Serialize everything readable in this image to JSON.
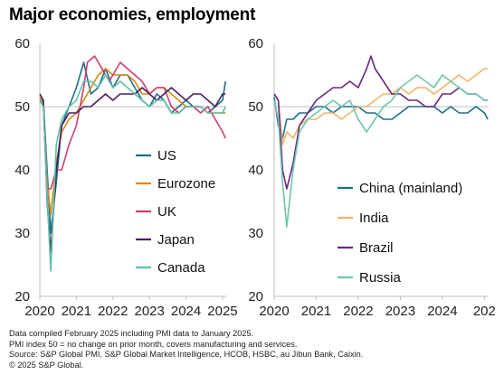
{
  "title": {
    "part1": "Major economies,",
    "part2": "employment"
  },
  "colors": {
    "US": "#1f6e8c",
    "Eurozone": "#d88a14",
    "UK": "#cc3e6e",
    "Japan": "#4b1f61",
    "Canada": "#5fc0a8",
    "China (mainland)": "#1f6e8c",
    "India": "#f2b46a",
    "Brazil": "#6b2a80",
    "Russia": "#6fc6b0",
    "gridline": "#d9d9d9",
    "refline": "#bfbfbf"
  },
  "footnotes": [
    "Data compiled February 2025 including PMI data to January 2025.",
    "PMI index 50 = no change on prior month, covers manufacturing and services.",
    "Source: S&P Global PMI, S&P Global Market Intelligence, HCOB, HSBC, au Jibun Bank, Caixin.",
    "© 2025 S&P Global."
  ],
  "chart_data": [
    {
      "type": "line",
      "title": "",
      "xlabel": "",
      "ylabel": "",
      "xlim": [
        2020.0,
        2025.1
      ],
      "ylim": [
        20,
        60
      ],
      "yticks": [
        "20",
        "30",
        "40",
        "50",
        "60"
      ],
      "xticks": [
        "2020",
        "2021",
        "2022",
        "2023",
        "2024",
        "2025"
      ],
      "reference_line": 50,
      "legend_placement": "center-right",
      "series": [
        {
          "name": "US",
          "x": [
            2020.0,
            2020.1,
            2020.2,
            2020.3,
            2020.45,
            2020.6,
            2020.8,
            2021.0,
            2021.2,
            2021.4,
            2021.6,
            2021.8,
            2022.0,
            2022.2,
            2022.4,
            2022.6,
            2022.8,
            2023.0,
            2023.2,
            2023.4,
            2023.6,
            2023.8,
            2024.0,
            2024.2,
            2024.4,
            2024.6,
            2024.8,
            2025.0,
            2025.08
          ],
          "y": [
            51.5,
            50.5,
            40,
            30,
            38,
            47,
            50,
            53,
            57,
            52,
            53,
            56,
            53,
            55,
            55,
            53,
            51,
            50,
            52,
            51,
            49,
            50,
            51,
            50,
            50,
            49,
            50,
            51,
            54
          ]
        },
        {
          "name": "Eurozone",
          "x": [
            2020.0,
            2020.1,
            2020.2,
            2020.3,
            2020.45,
            2020.6,
            2020.8,
            2021.0,
            2021.2,
            2021.4,
            2021.6,
            2021.8,
            2022.0,
            2022.2,
            2022.4,
            2022.6,
            2022.8,
            2023.0,
            2023.2,
            2023.4,
            2023.6,
            2023.8,
            2024.0,
            2024.2,
            2024.4,
            2024.6,
            2024.8,
            2025.0,
            2025.08
          ],
          "y": [
            51.5,
            50,
            38,
            33,
            41,
            46,
            48,
            49,
            51,
            53,
            55,
            56,
            55,
            55,
            55,
            54,
            52,
            52,
            53,
            53,
            52,
            51,
            50,
            50,
            50,
            49,
            49,
            49,
            49
          ]
        },
        {
          "name": "UK",
          "x": [
            2020.0,
            2020.1,
            2020.2,
            2020.3,
            2020.45,
            2020.6,
            2020.8,
            2021.0,
            2021.2,
            2021.3,
            2021.5,
            2021.7,
            2021.9,
            2022.0,
            2022.2,
            2022.4,
            2022.6,
            2022.8,
            2023.0,
            2023.2,
            2023.4,
            2023.6,
            2023.8,
            2024.0,
            2024.2,
            2024.4,
            2024.6,
            2024.8,
            2025.0,
            2025.08
          ],
          "y": [
            51,
            50,
            37,
            37,
            40,
            40,
            44,
            47,
            53,
            57,
            58,
            56,
            54,
            55,
            57,
            56,
            55,
            54,
            52,
            53,
            53,
            50,
            49,
            50,
            50,
            49,
            50,
            48,
            46,
            45
          ]
        },
        {
          "name": "Japan",
          "x": [
            2020.0,
            2020.1,
            2020.2,
            2020.3,
            2020.45,
            2020.6,
            2020.8,
            2021.0,
            2021.2,
            2021.4,
            2021.6,
            2021.8,
            2022.0,
            2022.2,
            2022.4,
            2022.6,
            2022.8,
            2023.0,
            2023.2,
            2023.4,
            2023.6,
            2023.8,
            2024.0,
            2024.2,
            2024.4,
            2024.6,
            2024.8,
            2025.0,
            2025.08
          ],
          "y": [
            52,
            51,
            35,
            27,
            40,
            47,
            49,
            49,
            50,
            50,
            51,
            52,
            51,
            52,
            52,
            52,
            53,
            52,
            51,
            52,
            53,
            52,
            51,
            52,
            52,
            51,
            50,
            52,
            52
          ]
        },
        {
          "name": "Canada",
          "x": [
            2020.0,
            2020.1,
            2020.2,
            2020.3,
            2020.45,
            2020.6,
            2020.8,
            2021.0,
            2021.2,
            2021.4,
            2021.6,
            2021.8,
            2022.0,
            2022.2,
            2022.4,
            2022.6,
            2022.8,
            2023.0,
            2023.2,
            2023.4,
            2023.6,
            2023.8,
            2024.0,
            2024.2,
            2024.4,
            2024.6,
            2024.8,
            2025.0,
            2025.08
          ],
          "y": [
            51,
            50,
            36,
            24,
            44,
            48,
            50,
            51,
            54,
            54,
            53,
            55,
            53,
            54,
            53,
            52,
            51,
            50,
            51,
            51,
            49,
            49,
            50,
            50,
            50,
            49,
            49,
            49,
            50
          ]
        }
      ]
    },
    {
      "type": "line",
      "title": "",
      "xlabel": "",
      "ylabel": "",
      "xlim": [
        2020.0,
        2025.1
      ],
      "ylim": [
        20,
        60
      ],
      "yticks": [
        "20",
        "30",
        "40",
        "50",
        "60"
      ],
      "xticks": [
        "2020",
        "2021",
        "2022",
        "2023",
        "2024",
        "202"
      ],
      "reference_line": 50,
      "legend_placement": "center-right",
      "series": [
        {
          "name": "China (mainland)",
          "x": [
            2020.0,
            2020.1,
            2020.2,
            2020.3,
            2020.45,
            2020.6,
            2020.8,
            2021.0,
            2021.2,
            2021.4,
            2021.6,
            2021.8,
            2022.0,
            2022.2,
            2022.4,
            2022.6,
            2022.8,
            2023.0,
            2023.2,
            2023.4,
            2023.6,
            2023.8,
            2024.0,
            2024.2,
            2024.4,
            2024.6,
            2024.8,
            2025.0,
            2025.08
          ],
          "y": [
            51.5,
            47,
            45,
            48,
            48,
            49,
            49,
            50,
            50,
            49,
            50,
            50,
            50,
            49,
            49,
            48,
            48,
            49,
            50,
            50,
            50,
            50,
            49,
            50,
            49,
            49,
            50,
            49,
            48
          ]
        },
        {
          "name": "India",
          "x": [
            2020.0,
            2020.1,
            2020.2,
            2020.3,
            2020.45,
            2020.6,
            2020.8,
            2021.0,
            2021.2,
            2021.4,
            2021.6,
            2021.8,
            2022.0,
            2022.2,
            2022.4,
            2022.6,
            2022.8,
            2023.0,
            2023.2,
            2023.4,
            2023.6,
            2023.8,
            2024.0,
            2024.2,
            2024.4,
            2024.6,
            2024.8,
            2025.0,
            2025.08
          ],
          "y": [
            52,
            51,
            44,
            46,
            45,
            47,
            48,
            48,
            49,
            49,
            48,
            49,
            50,
            50,
            51,
            52,
            52,
            53,
            52,
            53,
            53,
            52,
            53,
            54,
            55,
            54,
            55,
            56,
            56
          ]
        },
        {
          "name": "Brazil",
          "x": [
            2020.0,
            2020.1,
            2020.2,
            2020.3,
            2020.45,
            2020.6,
            2020.8,
            2021.0,
            2021.2,
            2021.4,
            2021.6,
            2021.8,
            2022.0,
            2022.2,
            2022.3,
            2022.4,
            2022.6,
            2022.8,
            2023.0,
            2023.2,
            2023.4,
            2023.6,
            2023.8,
            2024.0,
            2024.2,
            2024.4,
            2024.6,
            2024.8,
            2025.0,
            2025.08
          ],
          "y": [
            52,
            51,
            40,
            37,
            41,
            47,
            49,
            51,
            52,
            53,
            53,
            54,
            53,
            56,
            58,
            56,
            54,
            52,
            52,
            51,
            51,
            50,
            50,
            52,
            52,
            53,
            52,
            52,
            51,
            51
          ]
        },
        {
          "name": "Russia",
          "x": [
            2020.0,
            2020.1,
            2020.2,
            2020.3,
            2020.45,
            2020.6,
            2020.8,
            2021.0,
            2021.2,
            2021.4,
            2021.6,
            2021.8,
            2022.0,
            2022.2,
            2022.4,
            2022.6,
            2022.8,
            2023.0,
            2023.2,
            2023.4,
            2023.6,
            2023.8,
            2024.0,
            2024.2,
            2024.4,
            2024.6,
            2024.8,
            2025.0,
            2025.08
          ],
          "y": [
            51,
            48,
            38,
            31,
            40,
            46,
            48,
            49,
            50,
            51,
            50,
            51,
            48,
            46,
            48,
            50,
            51,
            53,
            54,
            55,
            54,
            53,
            55,
            54,
            53,
            52,
            52,
            51,
            51
          ]
        }
      ]
    }
  ]
}
